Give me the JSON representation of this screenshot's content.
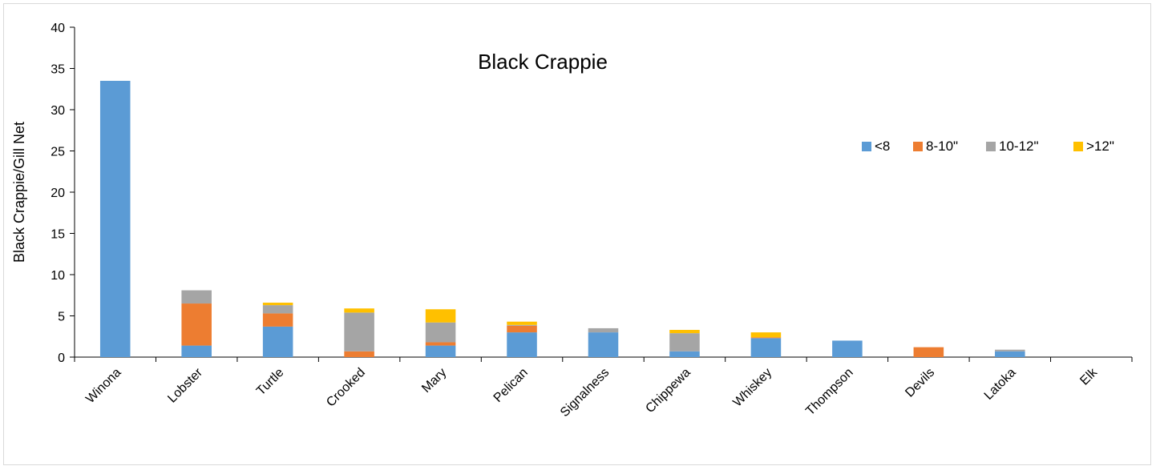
{
  "chart_data": {
    "type": "bar",
    "stacked": true,
    "title": "Black Crappie",
    "xlabel": "",
    "ylabel": "Black Crappie/Gill Net",
    "ylim": [
      0,
      40
    ],
    "yticks": [
      0,
      5,
      10,
      15,
      20,
      25,
      30,
      35,
      40
    ],
    "grid": false,
    "legend_position": "right",
    "categories": [
      "Winona",
      "Lobster",
      "Turtle",
      "Crooked",
      "Mary",
      "Pelican",
      "Signalness",
      "Chippewa",
      "Whiskey",
      "Thompson",
      "Devils",
      "Latoka",
      "Elk"
    ],
    "series": [
      {
        "name": "<8",
        "color": "#5b9bd5",
        "values": [
          33.5,
          1.4,
          3.7,
          0.0,
          1.4,
          3.0,
          3.0,
          0.7,
          2.3,
          2.0,
          0.0,
          0.7,
          0.0
        ]
      },
      {
        "name": "8-10\"",
        "color": "#ed7d31",
        "values": [
          0.0,
          5.1,
          1.6,
          0.7,
          0.4,
          0.8,
          0.0,
          0.0,
          0.1,
          0.0,
          1.2,
          0.0,
          0.0
        ]
      },
      {
        "name": "10-12\"",
        "color": "#a5a5a5",
        "values": [
          0.0,
          1.6,
          1.0,
          4.7,
          2.4,
          0.1,
          0.5,
          2.2,
          0.0,
          0.0,
          0.0,
          0.2,
          0.0
        ]
      },
      {
        "name": ">12\"",
        "color": "#ffc000",
        "values": [
          0.0,
          0.0,
          0.3,
          0.5,
          1.6,
          0.4,
          0.0,
          0.4,
          0.6,
          0.0,
          0.0,
          0.0,
          0.0
        ]
      }
    ]
  }
}
